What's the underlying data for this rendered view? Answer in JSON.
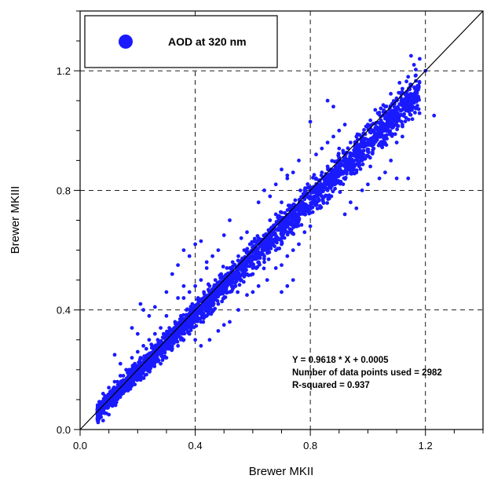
{
  "chart_data": {
    "type": "scatter",
    "title": "",
    "xlabel": "Brewer MKII",
    "ylabel": "Brewer MKIII",
    "xlim": [
      0.0,
      1.4
    ],
    "ylim": [
      0.0,
      1.4
    ],
    "x_ticks": [
      "0.0",
      "0.4",
      "0.8",
      "1.2"
    ],
    "y_ticks": [
      "0.0",
      "0.4",
      "0.8",
      "1.2"
    ],
    "x_tick_values": [
      0.0,
      0.4,
      0.8,
      1.2
    ],
    "y_tick_values": [
      0.0,
      0.4,
      0.8,
      1.2
    ],
    "grid": true,
    "legend_position": "top-left",
    "series": [
      {
        "name": "AOD at 320 nm",
        "color": "#1a1aff",
        "marker": "circle",
        "n_points": 2982,
        "points": [
          [
            0.07,
            0.08
          ],
          [
            0.08,
            0.06
          ],
          [
            0.09,
            0.11
          ],
          [
            0.1,
            0.09
          ],
          [
            0.11,
            0.13
          ],
          [
            0.12,
            0.1
          ],
          [
            0.13,
            0.16
          ],
          [
            0.14,
            0.12
          ],
          [
            0.15,
            0.18
          ],
          [
            0.16,
            0.14
          ],
          [
            0.17,
            0.2
          ],
          [
            0.18,
            0.16
          ],
          [
            0.19,
            0.22
          ],
          [
            0.2,
            0.19
          ],
          [
            0.21,
            0.24
          ],
          [
            0.22,
            0.2
          ],
          [
            0.23,
            0.27
          ],
          [
            0.24,
            0.22
          ],
          [
            0.25,
            0.28
          ],
          [
            0.26,
            0.25
          ],
          [
            0.27,
            0.3
          ],
          [
            0.28,
            0.26
          ],
          [
            0.29,
            0.32
          ],
          [
            0.3,
            0.28
          ],
          [
            0.31,
            0.34
          ],
          [
            0.32,
            0.3
          ],
          [
            0.33,
            0.36
          ],
          [
            0.34,
            0.32
          ],
          [
            0.35,
            0.38
          ],
          [
            0.36,
            0.34
          ],
          [
            0.37,
            0.4
          ],
          [
            0.38,
            0.36
          ],
          [
            0.39,
            0.42
          ],
          [
            0.4,
            0.38
          ],
          [
            0.41,
            0.44
          ],
          [
            0.42,
            0.4
          ],
          [
            0.43,
            0.46
          ],
          [
            0.44,
            0.42
          ],
          [
            0.45,
            0.48
          ],
          [
            0.46,
            0.44
          ],
          [
            0.47,
            0.5
          ],
          [
            0.48,
            0.46
          ],
          [
            0.49,
            0.52
          ],
          [
            0.5,
            0.48
          ],
          [
            0.51,
            0.54
          ],
          [
            0.52,
            0.5
          ],
          [
            0.53,
            0.56
          ],
          [
            0.54,
            0.52
          ],
          [
            0.55,
            0.58
          ],
          [
            0.56,
            0.54
          ],
          [
            0.57,
            0.6
          ],
          [
            0.58,
            0.56
          ],
          [
            0.59,
            0.62
          ],
          [
            0.6,
            0.58
          ],
          [
            0.62,
            0.64
          ],
          [
            0.64,
            0.6
          ],
          [
            0.66,
            0.66
          ],
          [
            0.68,
            0.64
          ],
          [
            0.7,
            0.7
          ],
          [
            0.72,
            0.68
          ],
          [
            0.74,
            0.74
          ],
          [
            0.76,
            0.72
          ],
          [
            0.78,
            0.8
          ],
          [
            0.8,
            0.78
          ],
          [
            0.82,
            0.84
          ],
          [
            0.84,
            0.8
          ],
          [
            0.86,
            0.88
          ],
          [
            0.88,
            0.86
          ],
          [
            0.9,
            0.9
          ],
          [
            0.92,
            0.88
          ],
          [
            0.94,
            0.96
          ],
          [
            0.96,
            0.92
          ],
          [
            0.98,
            0.98
          ],
          [
            1.0,
            0.96
          ],
          [
            1.02,
            1.0
          ],
          [
            1.04,
            0.98
          ],
          [
            1.06,
            1.04
          ],
          [
            1.08,
            1.06
          ],
          [
            1.1,
            1.1
          ],
          [
            1.12,
            1.14
          ],
          [
            1.14,
            1.18
          ],
          [
            1.16,
            1.22
          ],
          [
            1.18,
            1.24
          ],
          [
            1.2,
            1.2
          ],
          [
            1.23,
            1.05
          ],
          [
            1.15,
            1.25
          ],
          [
            1.13,
            1.12
          ],
          [
            1.11,
            1.16
          ],
          [
            0.08,
            0.03
          ],
          [
            0.1,
            0.05
          ],
          [
            0.12,
            0.25
          ],
          [
            0.14,
            0.22
          ],
          [
            0.18,
            0.34
          ],
          [
            0.2,
            0.32
          ],
          [
            0.21,
            0.42
          ],
          [
            0.22,
            0.4
          ],
          [
            0.24,
            0.38
          ],
          [
            0.26,
            0.41
          ],
          [
            0.3,
            0.46
          ],
          [
            0.32,
            0.52
          ],
          [
            0.34,
            0.55
          ],
          [
            0.36,
            0.6
          ],
          [
            0.38,
            0.58
          ],
          [
            0.4,
            0.62
          ],
          [
            0.42,
            0.63
          ],
          [
            0.44,
            0.56
          ],
          [
            0.4,
            0.3
          ],
          [
            0.42,
            0.28
          ],
          [
            0.45,
            0.3
          ],
          [
            0.48,
            0.33
          ],
          [
            0.5,
            0.35
          ],
          [
            0.52,
            0.36
          ],
          [
            0.55,
            0.4
          ],
          [
            0.58,
            0.45
          ],
          [
            0.6,
            0.46
          ],
          [
            0.62,
            0.48
          ],
          [
            0.65,
            0.5
          ],
          [
            0.68,
            0.54
          ],
          [
            0.7,
            0.55
          ],
          [
            0.72,
            0.58
          ],
          [
            0.74,
            0.6
          ],
          [
            0.76,
            0.62
          ],
          [
            0.78,
            0.66
          ],
          [
            0.8,
            0.68
          ],
          [
            0.62,
            0.76
          ],
          [
            0.64,
            0.8
          ],
          [
            0.66,
            0.78
          ],
          [
            0.68,
            0.82
          ],
          [
            0.7,
            0.76
          ],
          [
            0.72,
            0.84
          ],
          [
            0.74,
            0.86
          ],
          [
            0.76,
            0.9
          ],
          [
            0.7,
            0.87
          ],
          [
            0.72,
            0.85
          ],
          [
            0.82,
            0.92
          ],
          [
            0.84,
            0.94
          ],
          [
            0.86,
            0.96
          ],
          [
            0.88,
            0.98
          ],
          [
            0.9,
            1.0
          ],
          [
            0.92,
            1.02
          ],
          [
            0.92,
            0.72
          ],
          [
            0.94,
            0.76
          ],
          [
            0.96,
            0.74
          ],
          [
            0.98,
            0.8
          ],
          [
            1.0,
            0.82
          ],
          [
            1.04,
            0.84
          ],
          [
            1.06,
            0.86
          ],
          [
            1.08,
            0.9
          ],
          [
            1.1,
            0.96
          ],
          [
            1.12,
            0.98
          ],
          [
            1.14,
            0.84
          ],
          [
            1.1,
            0.84
          ],
          [
            0.8,
            1.03
          ],
          [
            0.86,
            1.1
          ],
          [
            0.88,
            1.08
          ],
          [
            1.04,
            1.06
          ],
          [
            1.06,
            1.08
          ],
          [
            1.08,
            1.02
          ],
          [
            0.32,
            0.27
          ],
          [
            0.36,
            0.44
          ],
          [
            0.56,
            0.64
          ],
          [
            0.58,
            0.66
          ],
          [
            0.6,
            0.52
          ],
          [
            0.64,
            0.56
          ],
          [
            0.66,
            0.7
          ],
          [
            0.68,
            0.72
          ],
          [
            0.7,
            0.62
          ],
          [
            0.74,
            0.7
          ],
          [
            0.78,
            0.74
          ],
          [
            0.82,
            0.78
          ],
          [
            0.84,
            0.86
          ],
          [
            0.86,
            0.82
          ],
          [
            0.88,
            0.84
          ],
          [
            0.9,
            0.94
          ],
          [
            0.94,
            0.88
          ],
          [
            0.96,
            0.98
          ],
          [
            0.98,
            0.9
          ],
          [
            1.0,
            1.02
          ],
          [
            1.02,
            0.94
          ],
          [
            1.06,
            0.98
          ],
          [
            1.1,
            1.06
          ],
          [
            1.12,
            1.02
          ],
          [
            0.74,
            0.5
          ],
          [
            0.72,
            0.48
          ],
          [
            0.7,
            0.46
          ],
          [
            0.52,
            0.7
          ],
          [
            0.5,
            0.65
          ],
          [
            0.48,
            0.6
          ],
          [
            0.46,
            0.58
          ],
          [
            0.44,
            0.54
          ],
          [
            0.42,
            0.5
          ],
          [
            0.4,
            0.48
          ],
          [
            0.38,
            0.46
          ],
          [
            0.36,
            0.48
          ],
          [
            0.34,
            0.44
          ],
          [
            0.3,
            0.38
          ],
          [
            0.28,
            0.34
          ],
          [
            0.26,
            0.32
          ],
          [
            0.24,
            0.3
          ],
          [
            0.22,
            0.28
          ],
          [
            0.2,
            0.26
          ],
          [
            0.18,
            0.24
          ],
          [
            0.16,
            0.2
          ],
          [
            0.14,
            0.18
          ],
          [
            0.12,
            0.16
          ],
          [
            0.1,
            0.14
          ],
          [
            0.08,
            0.12
          ],
          [
            0.28,
            0.22
          ],
          [
            0.3,
            0.24
          ],
          [
            0.34,
            0.28
          ],
          [
            0.36,
            0.3
          ],
          [
            0.38,
            0.32
          ],
          [
            0.42,
            0.36
          ],
          [
            0.44,
            0.38
          ],
          [
            0.46,
            0.4
          ],
          [
            0.48,
            0.42
          ],
          [
            0.5,
            0.44
          ],
          [
            0.52,
            0.46
          ],
          [
            0.54,
            0.48
          ],
          [
            0.56,
            0.5
          ],
          [
            0.58,
            0.52
          ],
          [
            0.6,
            0.54
          ],
          [
            0.62,
            0.56
          ],
          [
            0.64,
            0.58
          ],
          [
            0.66,
            0.62
          ],
          [
            0.68,
            0.6
          ],
          [
            0.7,
            0.64
          ],
          [
            0.72,
            0.66
          ],
          [
            0.74,
            0.68
          ],
          [
            0.76,
            0.7
          ],
          [
            0.78,
            0.72
          ],
          [
            0.8,
            0.74
          ],
          [
            0.82,
            0.76
          ],
          [
            0.84,
            0.78
          ],
          [
            0.86,
            0.8
          ],
          [
            0.88,
            0.82
          ],
          [
            0.9,
            0.86
          ],
          [
            0.92,
            0.84
          ],
          [
            0.94,
            0.9
          ],
          [
            0.96,
            0.86
          ]
        ]
      }
    ],
    "fit_line": {
      "slope": 0.9618,
      "intercept": 0.0005
    },
    "annotations": [
      "Y = 0.9618 * X + 0.0005",
      "Number of data points used = 2982",
      "R-squared = 0.937"
    ]
  }
}
